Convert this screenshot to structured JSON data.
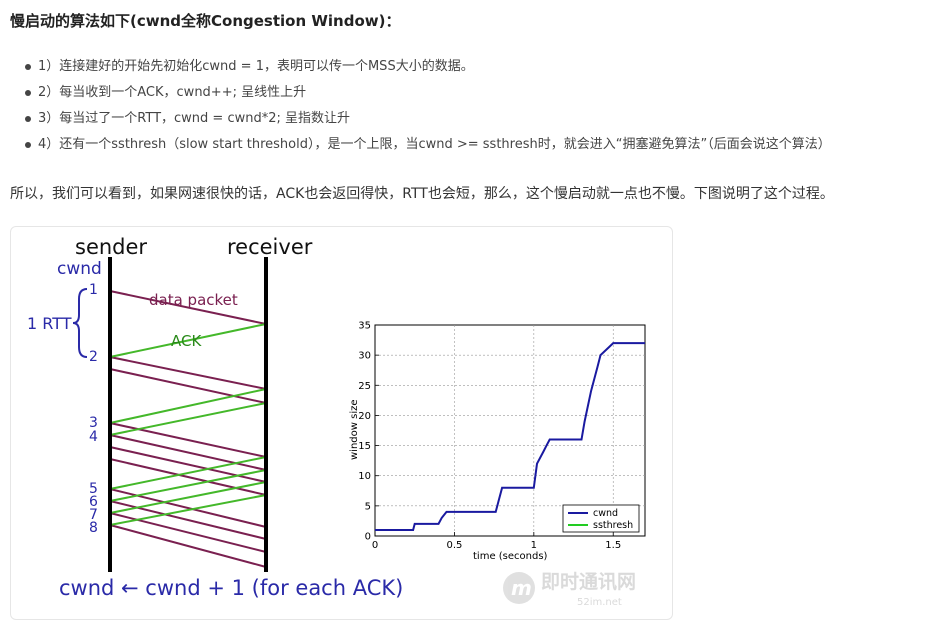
{
  "heading": "慢启动的算法如下(cwnd全称Congestion Window)：",
  "list_items": [
    "1）连接建好的开始先初始化cwnd = 1，表明可以传一个MSS大小的数据。",
    "2）每当收到一个ACK，cwnd++; 呈线性上升",
    "3）每当过了一个RTT，cwnd = cwnd*2; 呈指数让升",
    "4）还有一个ssthresh（slow start threshold），是一个上限，当cwnd >= ssthresh时，就会进入“拥塞避免算法”（后面会说这个算法）"
  ],
  "paragraph": "所以，我们可以看到，如果网速很快的话，ACK也会返回得快，RTT也会短，那么，这个慢启动就一点也不慢。下图说明了这个过程。",
  "diagram": {
    "sender_label": "sender",
    "receiver_label": "receiver",
    "cwnd_label": "cwnd",
    "rtt_label": "1 RTT",
    "data_packet_label": "data packet",
    "ack_label": "ACK",
    "cwnd_numbers": [
      "1",
      "2",
      "3",
      "4",
      "5",
      "6",
      "7",
      "8"
    ],
    "formula": "cwnd ← cwnd + 1 (for each ACK)",
    "colors": {
      "sender_text": "#222222",
      "cwnd_text": "#2a2aa8",
      "data": "#7a2050",
      "ack": "#44b82a"
    }
  },
  "watermark": {
    "text": "即时通讯网",
    "url": "52im.net"
  },
  "chart_data": {
    "type": "line",
    "xlabel": "time (seconds)",
    "ylabel": "window size",
    "xlim": [
      0,
      1.7
    ],
    "ylim": [
      0,
      35
    ],
    "xticks": [
      "0",
      "0.5",
      "1",
      "1.5"
    ],
    "yticks": [
      "0",
      "5",
      "10",
      "15",
      "20",
      "25",
      "30",
      "35"
    ],
    "grid": true,
    "legend": "bottom-right",
    "series": [
      {
        "name": "cwnd",
        "color": "#1a1aa0",
        "x": [
          0,
          0.24,
          0.25,
          0.4,
          0.42,
          0.45,
          0.76,
          0.78,
          0.8,
          1.0,
          1.02,
          1.06,
          1.08,
          1.1,
          1.3,
          1.32,
          1.36,
          1.4,
          1.42,
          1.46,
          1.5,
          1.7
        ],
        "y": [
          1,
          1,
          2,
          2,
          3,
          4,
          4,
          6,
          8,
          8,
          12,
          14,
          15,
          16,
          16,
          19,
          24,
          28,
          30,
          31,
          32,
          32
        ]
      },
      {
        "name": "ssthresh",
        "color": "#22cc22",
        "x": [],
        "y": []
      }
    ]
  }
}
